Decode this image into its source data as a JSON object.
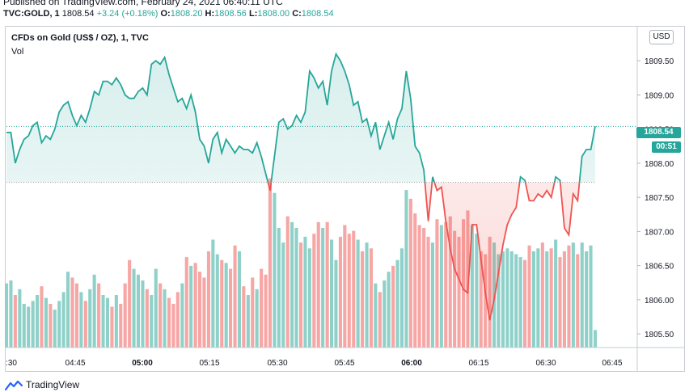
{
  "header": {
    "published": "Published on TradingView.com, February 24, 2021 06:40:11 UTC",
    "symbol": "TVC:GOLD, 1",
    "last": "1808.54",
    "change": "+3.24 (+0.18%)",
    "o_label": "O:",
    "o_value": "1808.20",
    "h_label": "H:",
    "h_value": "1808.56",
    "l_label": "L:",
    "l_value": "1808.00",
    "c_label": "C:",
    "c_value": "1808.54"
  },
  "legend": {
    "title": "CFDs on Gold (US$ / OZ), 1, TVC",
    "vol": "Vol"
  },
  "currency": "USD",
  "price_badge": "1808.54",
  "time_badge": "00:51",
  "footer": {
    "brand": "TradingView"
  },
  "colors": {
    "up": "#26a69a",
    "down": "#ef5350",
    "vol_up": "#8fd1c9",
    "vol_down": "#f6a6a4"
  },
  "chart_data": {
    "type": "area",
    "baseline": 1807.72,
    "ylim": [
      1805.3,
      1810.0
    ],
    "y_ticks": [
      {
        "v": 1805.5,
        "label": "1805.50"
      },
      {
        "v": 1806.0,
        "label": "1806.00"
      },
      {
        "v": 1806.5,
        "label": "1806.50"
      },
      {
        "v": 1807.0,
        "label": "1807.00"
      },
      {
        "v": 1807.5,
        "label": "1807.50"
      },
      {
        "v": 1808.0,
        "label": "1808.00"
      },
      {
        "v": 1808.5,
        "label": "1808.50"
      },
      {
        "v": 1809.0,
        "label": "1809.00"
      },
      {
        "v": 1809.5,
        "label": "1809.50"
      }
    ],
    "x_ticks": [
      {
        "label": ":30",
        "bold": false
      },
      {
        "label": "04:45",
        "bold": false
      },
      {
        "label": "05:00",
        "bold": true
      },
      {
        "label": "05:15",
        "bold": false
      },
      {
        "label": "05:30",
        "bold": false
      },
      {
        "label": "05:45",
        "bold": false
      },
      {
        "label": "06:00",
        "bold": true
      },
      {
        "label": "06:15",
        "bold": false
      },
      {
        "label": "06:30",
        "bold": false
      },
      {
        "label": "06:45",
        "bold": false
      }
    ],
    "price": [
      1808.45,
      1808.45,
      1808.0,
      1808.2,
      1808.35,
      1808.4,
      1808.55,
      1808.6,
      1808.3,
      1808.4,
      1808.35,
      1808.5,
      1808.75,
      1808.85,
      1808.9,
      1808.7,
      1808.55,
      1808.7,
      1808.6,
      1808.8,
      1809.05,
      1809.0,
      1809.2,
      1809.2,
      1809.15,
      1809.25,
      1809.15,
      1809.0,
      1808.95,
      1808.95,
      1809.05,
      1809.1,
      1809.0,
      1809.45,
      1809.5,
      1809.45,
      1809.55,
      1809.3,
      1809.1,
      1808.9,
      1808.95,
      1808.8,
      1809.0,
      1808.75,
      1808.35,
      1808.25,
      1808.0,
      1808.35,
      1808.45,
      1808.15,
      1808.35,
      1808.25,
      1808.15,
      1808.25,
      1808.2,
      1808.2,
      1808.15,
      1808.3,
      1808.1,
      1807.85,
      1807.6,
      1808.1,
      1808.6,
      1808.65,
      1808.5,
      1808.55,
      1808.7,
      1808.6,
      1808.75,
      1809.35,
      1809.25,
      1809.1,
      1809.2,
      1808.85,
      1809.35,
      1809.6,
      1809.5,
      1809.35,
      1809.15,
      1808.85,
      1808.9,
      1808.6,
      1808.65,
      1808.4,
      1808.6,
      1808.2,
      1808.4,
      1808.6,
      1808.35,
      1808.65,
      1808.8,
      1809.35,
      1808.95,
      1808.25,
      1808.15,
      1807.9,
      1807.15,
      1807.8,
      1807.6,
      1807.65,
      1807.15,
      1806.75,
      1806.45,
      1806.3,
      1806.15,
      1806.1,
      1807.1,
      1807.1,
      1806.6,
      1806.1,
      1805.7,
      1806.0,
      1806.4,
      1806.8,
      1807.1,
      1807.25,
      1807.35,
      1807.8,
      1807.75,
      1807.45,
      1807.45,
      1807.55,
      1807.5,
      1807.6,
      1807.5,
      1807.8,
      1807.75,
      1807.05,
      1806.95,
      1807.55,
      1807.45,
      1808.1,
      1808.2,
      1808.2,
      1808.54
    ],
    "volume": [
      22,
      23,
      18,
      20,
      15,
      14,
      16,
      18,
      21,
      17,
      15,
      13,
      16,
      19,
      26,
      24,
      22,
      19,
      16,
      20,
      25,
      22,
      18,
      17,
      14,
      18,
      15,
      22,
      30,
      27,
      25,
      23,
      20,
      18,
      27,
      22,
      20,
      17,
      15,
      19,
      22,
      31,
      28,
      29,
      26,
      24,
      33,
      37,
      32,
      30,
      29,
      27,
      35,
      33,
      21,
      18,
      24,
      20,
      27,
      25,
      58,
      53,
      41,
      36,
      45,
      43,
      41,
      36,
      38,
      34,
      39,
      43,
      41,
      43,
      37,
      30,
      38,
      42,
      39,
      40,
      37,
      33,
      36,
      34,
      22,
      19,
      23,
      26,
      28,
      30,
      34,
      54,
      51,
      46,
      42,
      41,
      38,
      36,
      44,
      42,
      43,
      45,
      40,
      38,
      44,
      47,
      42,
      39,
      33,
      32,
      38,
      36,
      32,
      33,
      34,
      33,
      32,
      31,
      30,
      35,
      33,
      34,
      36,
      33,
      34,
      37,
      31,
      33,
      35,
      36,
      32,
      36,
      33,
      35,
      6
    ],
    "volume_max": 110
  }
}
